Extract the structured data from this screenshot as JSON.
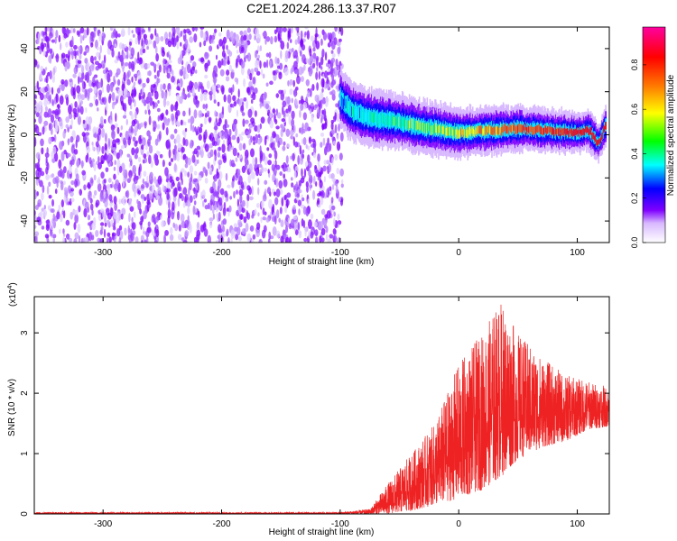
{
  "title": "C2E1.2024.286.13.37.R07",
  "chart_data": [
    {
      "type": "heatmap",
      "xlabel": "Height of straight line (km)",
      "ylabel": "Frequency (Hz)",
      "xlim": [
        -358,
        127
      ],
      "ylim": [
        -50,
        50
      ],
      "xticks": [
        -300,
        -200,
        -100,
        0,
        100
      ],
      "yticks": [
        -40,
        -20,
        0,
        20,
        40
      ],
      "colorbar": {
        "label": "Normalized spectral amplitude",
        "range": [
          0,
          0.97
        ],
        "ticks": [
          0.0,
          0.2,
          0.4,
          0.6,
          0.8
        ],
        "colors": [
          "#ffffff",
          "#7f00ff",
          "#0000ff",
          "#00ffff",
          "#00ff00",
          "#ffff00",
          "#ff8000",
          "#ff0000",
          "#ff00ff"
        ]
      },
      "noise_region": {
        "x_range": [
          -358,
          -98
        ],
        "freq_range": [
          -50,
          50
        ],
        "amplitude": [
          0.0,
          0.1
        ]
      },
      "signal_centerline": [
        {
          "x": -100,
          "freq": 17
        },
        {
          "x": -90,
          "freq": 11
        },
        {
          "x": -75,
          "freq": 8
        },
        {
          "x": -50,
          "freq": 6
        },
        {
          "x": -25,
          "freq": 3
        },
        {
          "x": 0,
          "freq": 1
        },
        {
          "x": 25,
          "freq": 2
        },
        {
          "x": 50,
          "freq": 3
        },
        {
          "x": 75,
          "freq": 2
        },
        {
          "x": 100,
          "freq": 1
        },
        {
          "x": 110,
          "freq": 2
        },
        {
          "x": 118,
          "freq": -4
        },
        {
          "x": 124,
          "freq": 4
        }
      ],
      "grid": false
    },
    {
      "type": "line",
      "xlabel": "Height of straight line (km)",
      "ylabel": "SNR (10 * v/v)",
      "ylabel_multiplier": "(x10",
      "ylabel_multiplier_exp": "4",
      "ylabel_multiplier_close": ")",
      "xlim": [
        -358,
        127
      ],
      "ylim": [
        0,
        3.6
      ],
      "xticks": [
        -300,
        -200,
        -100,
        0,
        100
      ],
      "yticks": [
        0,
        1,
        2,
        3
      ],
      "series": [
        {
          "color": "#ee2222",
          "envelope": [
            {
              "x": -358,
              "min": 0,
              "max": 0.03
            },
            {
              "x": -100,
              "min": 0,
              "max": 0.03
            },
            {
              "x": -75,
              "min": 0,
              "max": 0.08
            },
            {
              "x": -60,
              "min": 0,
              "max": 0.5
            },
            {
              "x": -40,
              "min": 0.05,
              "max": 1.0
            },
            {
              "x": -20,
              "min": 0.15,
              "max": 1.5
            },
            {
              "x": 0,
              "min": 0.25,
              "max": 2.5
            },
            {
              "x": 20,
              "min": 0.4,
              "max": 3.0
            },
            {
              "x": 35,
              "min": 0.6,
              "max": 3.55
            },
            {
              "x": 50,
              "min": 0.9,
              "max": 3.0
            },
            {
              "x": 70,
              "min": 1.1,
              "max": 2.6
            },
            {
              "x": 90,
              "min": 1.2,
              "max": 2.3
            },
            {
              "x": 110,
              "min": 1.4,
              "max": 2.2
            },
            {
              "x": 127,
              "min": 1.45,
              "max": 2.1
            }
          ]
        }
      ],
      "grid": false
    }
  ]
}
